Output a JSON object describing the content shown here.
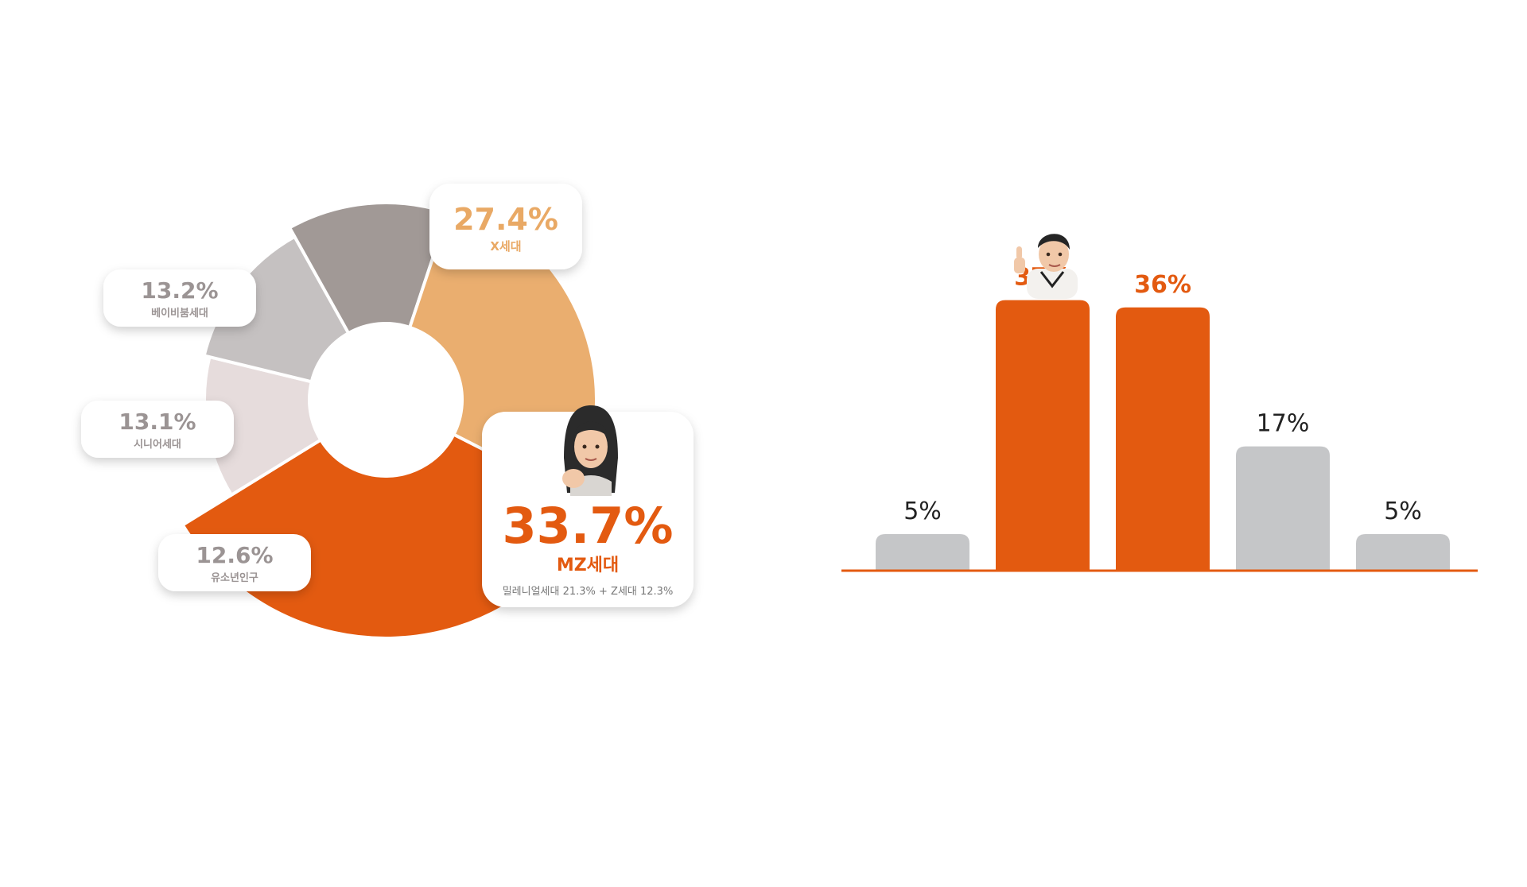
{
  "chart_data": [
    {
      "type": "pie",
      "donut": true,
      "slices": [
        {
          "label": "MZ세대",
          "value": 33.7,
          "value_label": "33.7%",
          "color": "#E35A10",
          "highlight": true,
          "note": "밀레니얼세대 21.3% + Z세대 12.3%"
        },
        {
          "label": "유소년인구",
          "value": 12.6,
          "value_label": "12.6%",
          "color": "#E6DCDC"
        },
        {
          "label": "시니어세대",
          "value": 13.1,
          "value_label": "13.1%",
          "color": "#C5C1C1"
        },
        {
          "label": "베이비붐세대",
          "value": 13.2,
          "value_label": "13.2%",
          "color": "#A19996"
        },
        {
          "label": "X세대",
          "value": 27.4,
          "value_label": "27.4%",
          "color": "#EAAE6F"
        }
      ]
    },
    {
      "type": "bar",
      "categories": [
        "",
        "",
        "",
        "",
        ""
      ],
      "values": [
        5,
        37,
        36,
        17,
        5
      ],
      "value_labels": [
        "5%",
        "37%",
        "36%",
        "17%",
        "5%"
      ],
      "colors": [
        "#C5C6C8",
        "#E35A10",
        "#E35A10",
        "#C5C6C8",
        "#C5C6C8"
      ],
      "highlight_label_color": "#E35A10",
      "baseline_color": "#E35A10",
      "ylim": [
        0,
        40
      ]
    }
  ],
  "icons": {
    "mz_avatar": "avatar-woman-fist-icon",
    "bar_avatar": "avatar-man-thumbs-up-icon"
  }
}
